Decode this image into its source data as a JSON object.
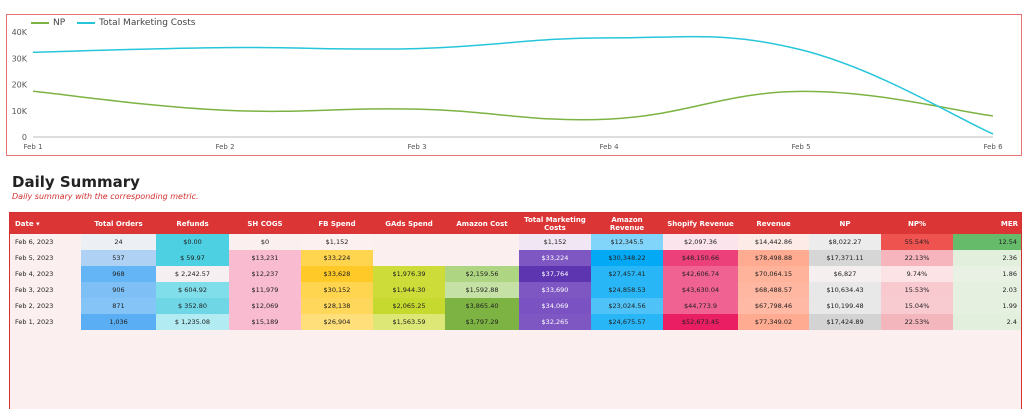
{
  "chart": {
    "legend": [
      {
        "name": "NP",
        "color": "#7cb342"
      },
      {
        "name": "Total Marketing Costs",
        "color": "#26c6da"
      }
    ],
    "chart_data": {
      "type": "line",
      "categories": [
        "Feb 1",
        "Feb 2",
        "Feb 3",
        "Feb 4",
        "Feb 5",
        "Feb 6"
      ],
      "series": [
        {
          "name": "NP",
          "values": [
            17424.89,
            10199.48,
            10634.43,
            6827,
            17371.11,
            8022.27
          ]
        },
        {
          "name": "Total Marketing Costs",
          "values": [
            32265,
            34069,
            33690,
            37764,
            33224,
            1152
          ]
        }
      ],
      "ylim": [
        0,
        40000
      ],
      "yticks": [
        "0",
        "10K",
        "20K",
        "30K",
        "40K"
      ],
      "grid": false,
      "legend_position": "top-left"
    }
  },
  "summary": {
    "title": "Daily Summary",
    "subtitle": "Daily summary with the corresponding metric.",
    "columns": [
      "Date ▾",
      "Total Orders",
      "Refunds",
      "SH COGS",
      "FB Spend",
      "GAds Spend",
      "Amazon Cost",
      "Total Marketing Costs",
      "Amazon Revenue",
      "Shopify Revenue",
      "Revenue",
      "NP",
      "NP%",
      "MER"
    ],
    "rows": [
      {
        "date": "Feb 6, 2023",
        "cells": [
          [
            "24",
            "#eceff4"
          ],
          [
            "$0.00",
            "#4dd0e1"
          ],
          [
            "$0",
            "#fbefef"
          ],
          [
            "$1,152",
            "#fdf0f0"
          ],
          [
            "",
            "#fbefef"
          ],
          [
            "",
            "#fbefef"
          ],
          [
            "$1,152",
            "#f1e6f4"
          ],
          [
            "$12,345.5",
            "#81d4fa"
          ],
          [
            "$2,097.36",
            "#fce4ec"
          ],
          [
            "$14,442.86",
            "#fcebe6"
          ],
          [
            "$8,022.27",
            "#ececec"
          ],
          [
            "55.54%",
            "#ef5350"
          ],
          [
            "12.54",
            "#66bb6a"
          ]
        ]
      },
      {
        "date": "Feb 5, 2023",
        "cells": [
          [
            "537",
            "#aed1f4"
          ],
          [
            "$ 59.97",
            "#4dd0e1"
          ],
          [
            "$13,231",
            "#f8bbd0"
          ],
          [
            "$33,224",
            "#ffd54f"
          ],
          [
            "",
            "#fbefef"
          ],
          [
            "",
            "#fbefef"
          ],
          [
            "$33,224",
            "#7e57c2"
          ],
          [
            "$30,348.22",
            "#03a9f4"
          ],
          [
            "$48,150.66",
            "#ec407a"
          ],
          [
            "$78,498.88",
            "#ffab91"
          ],
          [
            "$17,371.11",
            "#d6d6d6"
          ],
          [
            "22.13%",
            "#f6b4bd"
          ],
          [
            "2.36",
            "#e2efdc"
          ]
        ]
      },
      {
        "date": "Feb 4, 2023",
        "cells": [
          [
            "968",
            "#64b5f6"
          ],
          [
            "$ 2,242.57",
            "#f5eff2"
          ],
          [
            "$12,237",
            "#f8bbd0"
          ],
          [
            "$33,628",
            "#ffca28"
          ],
          [
            "$1,976.39",
            "#cddc39"
          ],
          [
            "$2,159.56",
            "#aed581"
          ],
          [
            "$37,764",
            "#5e35b1"
          ],
          [
            "$27,457.41",
            "#29b6f6"
          ],
          [
            "$42,606.74",
            "#f06292"
          ],
          [
            "$70,064.15",
            "#ffb39b"
          ],
          [
            "$6,827",
            "#f5efef"
          ],
          [
            "9.74%",
            "#fbe3e6"
          ],
          [
            "1.86",
            "#e8f1e3"
          ]
        ]
      },
      {
        "date": "Feb 3, 2023",
        "cells": [
          [
            "906",
            "#7ec0f5"
          ],
          [
            "$ 604.92",
            "#80deea"
          ],
          [
            "$11,979",
            "#f8bbd0"
          ],
          [
            "$30,152",
            "#ffd54f"
          ],
          [
            "$1,944.30",
            "#cddc39"
          ],
          [
            "$1,592.88",
            "#c5e1a5"
          ],
          [
            "$33,690",
            "#7e57c2"
          ],
          [
            "$24,858.53",
            "#29b6f6"
          ],
          [
            "$43,630.04",
            "#f06292"
          ],
          [
            "$68,488.57",
            "#ffb7a1"
          ],
          [
            "$10,634.43",
            "#e8e8e8"
          ],
          [
            "15.53%",
            "#f8cad0"
          ],
          [
            "2.03",
            "#e6f0e1"
          ]
        ]
      },
      {
        "date": "Feb 2, 2023",
        "cells": [
          [
            "871",
            "#85c4f6"
          ],
          [
            "$ 352.80",
            "#6fd6e6"
          ],
          [
            "$12,069",
            "#f8bbd0"
          ],
          [
            "$28,138",
            "#ffd75a"
          ],
          [
            "$2,065.25",
            "#c6d92f"
          ],
          [
            "$3,865.40",
            "#7cb342"
          ],
          [
            "$34,069",
            "#7b52c1"
          ],
          [
            "$23,024.56",
            "#4fc3f7"
          ],
          [
            "$44,773.9",
            "#f06292"
          ],
          [
            "$67,798.46",
            "#ffb9a4"
          ],
          [
            "$10,199.48",
            "#e8e8e8"
          ],
          [
            "15.04%",
            "#f8cbd1"
          ],
          [
            "1.99",
            "#e6f0e1"
          ]
        ]
      },
      {
        "date": "Feb 1, 2023",
        "cells": [
          [
            "1,036",
            "#5aaef4"
          ],
          [
            "$ 1,235.08",
            "#b2ebf2"
          ],
          [
            "$15,189",
            "#f8bbd0"
          ],
          [
            "$26,904",
            "#ffdf7a"
          ],
          [
            "$1,563.59",
            "#dce775"
          ],
          [
            "$3,797.29",
            "#7cb342"
          ],
          [
            "$32,265",
            "#7e57c2"
          ],
          [
            "$24,675.57",
            "#29b6f6"
          ],
          [
            "$52,673.45",
            "#e91e63"
          ],
          [
            "$77,349.02",
            "#ffab91"
          ],
          [
            "$17,424.89",
            "#d3d3d3"
          ],
          [
            "22.53%",
            "#f4b6bd"
          ],
          [
            "2.4",
            "#e2efdc"
          ]
        ]
      }
    ]
  }
}
